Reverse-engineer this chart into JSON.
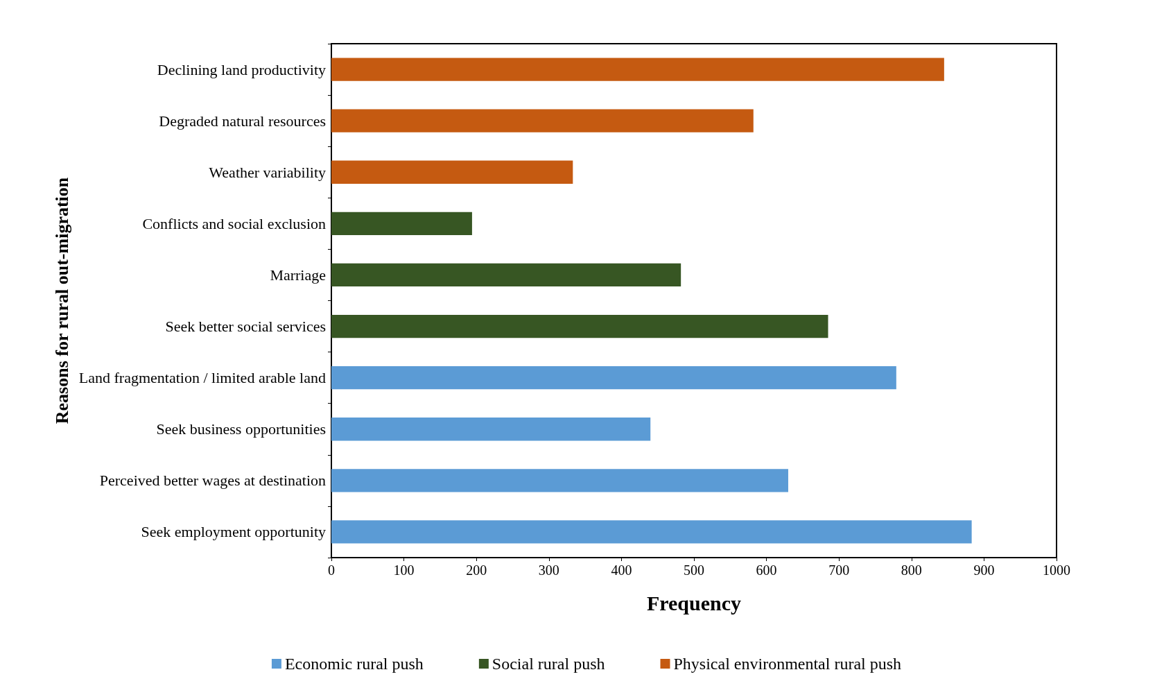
{
  "chart_data": {
    "type": "bar",
    "orientation": "horizontal",
    "xlabel": "Frequency",
    "ylabel": "Reasons for rural out-migration",
    "categories": [
      "Declining land productivity",
      "Degraded natural resources",
      "Weather variability",
      "Conflicts and social exclusion",
      "Marriage",
      "Seek better social services",
      "Land fragmentation / limited arable land",
      "Seek business opportunities",
      "Perceived better wages at destination",
      "Seek employment opportunity"
    ],
    "series": [
      {
        "name": "Economic rural push",
        "color": "#5b9bd5",
        "values": [
          null,
          null,
          null,
          null,
          null,
          null,
          779,
          440,
          630,
          883
        ]
      },
      {
        "name": "Social rural push",
        "color": "#375623",
        "values": [
          null,
          null,
          null,
          194,
          482,
          685,
          null,
          null,
          null,
          null
        ]
      },
      {
        "name": "Physical environmental rural push",
        "color": "#c55a11",
        "values": [
          845,
          582,
          333,
          null,
          null,
          null,
          null,
          null,
          null,
          null
        ]
      }
    ],
    "xlim": [
      0,
      1000
    ],
    "xticks": [
      0,
      100,
      200,
      300,
      400,
      500,
      600,
      700,
      800,
      900,
      1000
    ],
    "grid": false,
    "legend": "bottom"
  }
}
